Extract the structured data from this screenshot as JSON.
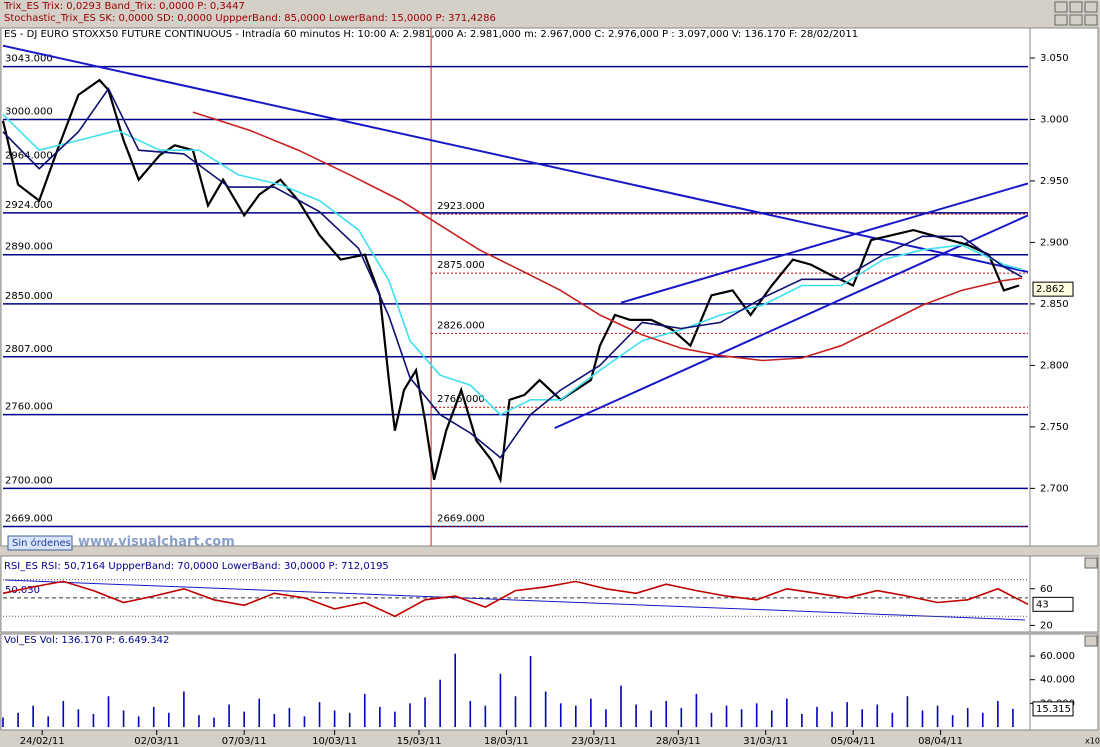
{
  "chart_data": [
    {
      "type": "line",
      "indicators": [
        "Trix_ES  Trix: 0,0293  Band_Trix: 0,0000  P: 0,3447",
        "Stochastic_Trix_ES  SK: 0,0000  SD: 0,0000  UppperBand: 85,0000  LowerBand: 15,0000  P: 371,4286"
      ],
      "title": "ES - DJ EURO STOXX50 FUTURE CONTINUOUS - Intradía 60 minutos  H: 10:00  A: 2.981,000  A: 2.981,000  m: 2.967,000  C: 2.976,000  P : 3.097,000  V: 136.170  F: 28/02/2011",
      "xlim": [
        0,
        340
      ],
      "ylim": [
        2658,
        3063
      ],
      "yticks": [
        {
          "value": 3050,
          "label": "3.050"
        },
        {
          "value": 3000,
          "label": "3.000"
        },
        {
          "value": 2950,
          "label": "2.950"
        },
        {
          "value": 2900,
          "label": "2.900"
        },
        {
          "value": 2850,
          "label": "2.850"
        },
        {
          "value": 2800,
          "label": "2.800"
        },
        {
          "value": 2750,
          "label": "2.750"
        },
        {
          "value": 2700,
          "label": "2.700"
        }
      ],
      "levels": [
        {
          "value": 3043,
          "label": "3043.000"
        },
        {
          "value": 3000,
          "label": "3000.000"
        },
        {
          "value": 2964,
          "label": "2964.000"
        },
        {
          "value": 2924,
          "label": "2924.000"
        },
        {
          "value": 2890,
          "label": "2890.000"
        },
        {
          "value": 2850,
          "label": "2850.000"
        },
        {
          "value": 2807,
          "label": "2807.000"
        },
        {
          "value": 2760,
          "label": "2760.000"
        },
        {
          "value": 2700,
          "label": "2700.000"
        },
        {
          "value": 2669,
          "label": "2669.000"
        }
      ],
      "level_color": "#00008b",
      "dotted_levels": [
        {
          "value": 2923,
          "label": "2923.000"
        },
        {
          "value": 2875,
          "label": "2875.000"
        },
        {
          "value": 2826,
          "label": "2826.000"
        },
        {
          "value": 2766,
          "label": "2766.000"
        },
        {
          "value": 2669,
          "label": "2669.000"
        }
      ],
      "dotted_color": "#c00000",
      "vline_x": 142,
      "series": [
        {
          "color": "#000000",
          "x": [
            0,
            5,
            12,
            18,
            25,
            32,
            35,
            40,
            45,
            52,
            57,
            63,
            68,
            73,
            80,
            85,
            92,
            98,
            105,
            112,
            120,
            125,
            128,
            130,
            133,
            137,
            140,
            143,
            147,
            152,
            157,
            162,
            165,
            168,
            173,
            178,
            185,
            190,
            195,
            198,
            203,
            208,
            215,
            222,
            228,
            235,
            242,
            248,
            255,
            262,
            268,
            275,
            282,
            288,
            295,
            302,
            308,
            320,
            327,
            332,
            337
          ],
          "values": [
            2999,
            2947,
            2934,
            2975,
            3020,
            3032,
            3024,
            2983,
            2951,
            2971,
            2979,
            2975,
            2930,
            2951,
            2922,
            2939,
            2951,
            2934,
            2906,
            2886,
            2890,
            2857,
            2788,
            2747,
            2780,
            2796,
            2755,
            2707,
            2747,
            2780,
            2739,
            2723,
            2707,
            2772,
            2776,
            2788,
            2772,
            2780,
            2788,
            2816,
            2841,
            2837,
            2837,
            2829,
            2816,
            2857,
            2861,
            2841,
            2865,
            2886,
            2882,
            2873,
            2865,
            2902,
            2906,
            2910,
            2906,
            2898,
            2890,
            2861,
            2865
          ]
        },
        {
          "color": "#40e0f0",
          "x": [
            0,
            12,
            25,
            38,
            52,
            65,
            78,
            92,
            105,
            118,
            128,
            135,
            145,
            155,
            165,
            175,
            185,
            198,
            212,
            225,
            238,
            252,
            265,
            278,
            292,
            305,
            318,
            332,
            338
          ],
          "values": [
            3004,
            2975,
            2983,
            2991,
            2975,
            2975,
            2955,
            2947,
            2934,
            2910,
            2869,
            2820,
            2792,
            2784,
            2760,
            2772,
            2772,
            2796,
            2820,
            2829,
            2841,
            2849,
            2865,
            2865,
            2886,
            2894,
            2898,
            2882,
            2878
          ]
        },
        {
          "color": "#101070",
          "x": [
            0,
            12,
            25,
            35,
            45,
            60,
            75,
            90,
            105,
            118,
            128,
            135,
            145,
            155,
            165,
            175,
            185,
            198,
            212,
            225,
            238,
            252,
            265,
            278,
            292,
            305,
            318,
            332,
            338
          ],
          "values": [
            2990,
            2960,
            2990,
            3025,
            2975,
            2972,
            2945,
            2945,
            2925,
            2895,
            2840,
            2790,
            2760,
            2745,
            2725,
            2760,
            2780,
            2800,
            2835,
            2830,
            2835,
            2855,
            2870,
            2870,
            2890,
            2905,
            2905,
            2880,
            2872
          ]
        },
        {
          "color": "#c82020",
          "x": [
            63,
            82,
            98,
            115,
            132,
            145,
            158,
            172,
            185,
            198,
            212,
            225,
            238,
            252,
            265,
            278,
            292,
            305,
            318,
            332,
            338
          ],
          "values": [
            3006,
            2991,
            2975,
            2955,
            2934,
            2914,
            2894,
            2877,
            2861,
            2841,
            2825,
            2814,
            2808,
            2804,
            2806,
            2816,
            2833,
            2849,
            2861,
            2869,
            2871
          ]
        }
      ],
      "trendlines": [
        {
          "color": "#1818c8",
          "x": [
            0,
            340
          ],
          "values": [
            3060,
            2876
          ]
        },
        {
          "color": "#1818c8",
          "x": [
            183,
            340
          ],
          "values": [
            2749,
            2922
          ]
        },
        {
          "color": "#1818c8",
          "x": [
            205,
            340
          ],
          "values": [
            2851,
            2948
          ]
        }
      ],
      "last_value_label": {
        "value": 2862,
        "label": "2.862"
      },
      "orders": "Sin órdenes",
      "watermark": "www.visualchart.com"
    },
    {
      "type": "line",
      "title": "RSI_ES  RSI: 50,7164  UppperBand: 70,0000  LowerBand: 30,0000  P: 712,0195",
      "xlim": [
        0,
        340
      ],
      "ylim": [
        15,
        75
      ],
      "yticks": [
        20,
        60
      ],
      "levels": [
        {
          "value": 50.03,
          "label": "50.030"
        }
      ],
      "bands": [
        70,
        30
      ],
      "series": [
        {
          "color": "#c00000",
          "x": [
            0,
            10,
            20,
            30,
            40,
            50,
            60,
            70,
            80,
            90,
            100,
            110,
            120,
            130,
            140,
            150,
            160,
            170,
            180,
            190,
            200,
            210,
            220,
            230,
            240,
            250,
            260,
            270,
            280,
            290,
            300,
            310,
            320,
            330,
            340
          ],
          "values": [
            55,
            62,
            68,
            58,
            45,
            52,
            60,
            48,
            42,
            55,
            50,
            38,
            45,
            30,
            48,
            52,
            40,
            58,
            62,
            68,
            60,
            55,
            65,
            58,
            52,
            48,
            60,
            55,
            50,
            58,
            52,
            45,
            48,
            60,
            43
          ]
        }
      ],
      "last_value_label": 43
    },
    {
      "type": "bar",
      "title": "Vol_ES  Vol: 136.170  P: 6.649.342",
      "xlim": [
        0,
        340
      ],
      "ylim": [
        0,
        66800
      ],
      "yticks": [
        {
          "value": 60000,
          "label": "60.000"
        },
        {
          "value": 40000,
          "label": "40.000"
        },
        {
          "value": 20000,
          "label": "20.000"
        }
      ],
      "color": "#0000c0",
      "x": [
        0,
        5,
        10,
        15,
        20,
        25,
        30,
        35,
        40,
        45,
        50,
        55,
        60,
        65,
        70,
        75,
        80,
        85,
        90,
        95,
        100,
        105,
        110,
        115,
        120,
        125,
        130,
        135,
        140,
        145,
        150,
        155,
        160,
        165,
        170,
        175,
        180,
        185,
        190,
        195,
        200,
        205,
        210,
        215,
        220,
        225,
        230,
        235,
        240,
        245,
        250,
        255,
        260,
        265,
        270,
        275,
        280,
        285,
        290,
        295,
        300,
        305,
        310,
        315,
        320,
        325,
        330,
        335
      ],
      "values": [
        8000,
        12000,
        18000,
        9000,
        22000,
        15000,
        11000,
        26000,
        14000,
        9000,
        17000,
        12000,
        30000,
        10000,
        8000,
        19000,
        13000,
        24000,
        11000,
        16000,
        9000,
        21000,
        14000,
        12000,
        28000,
        17000,
        13000,
        20000,
        25000,
        40000,
        62000,
        22000,
        18000,
        45000,
        26000,
        60000,
        30000,
        20000,
        18000,
        24000,
        15000,
        35000,
        19000,
        14000,
        22000,
        16000,
        28000,
        12000,
        18000,
        15000,
        20000,
        14000,
        24000,
        11000,
        17000,
        13000,
        21000,
        15000,
        19000,
        12000,
        26000,
        14000,
        18000,
        10000,
        16000,
        12000,
        22000,
        15315
      ],
      "last_value_label": {
        "value": 15315,
        "label": "15.315"
      },
      "scale_note": "x10",
      "xticks": [
        {
          "value": 13,
          "label": "24/02/11"
        },
        {
          "value": 51,
          "label": "02/03/11"
        },
        {
          "value": 80,
          "label": "07/03/11"
        },
        {
          "value": 110,
          "label": "10/03/11"
        },
        {
          "value": 138,
          "label": "15/03/11"
        },
        {
          "value": 167,
          "label": "18/03/11"
        },
        {
          "value": 196,
          "label": "23/03/11"
        },
        {
          "value": 224,
          "label": "28/03/11"
        },
        {
          "value": 253,
          "label": "31/03/11"
        },
        {
          "value": 282,
          "label": "05/04/11"
        },
        {
          "value": 311,
          "label": "08/04/11"
        }
      ]
    }
  ]
}
